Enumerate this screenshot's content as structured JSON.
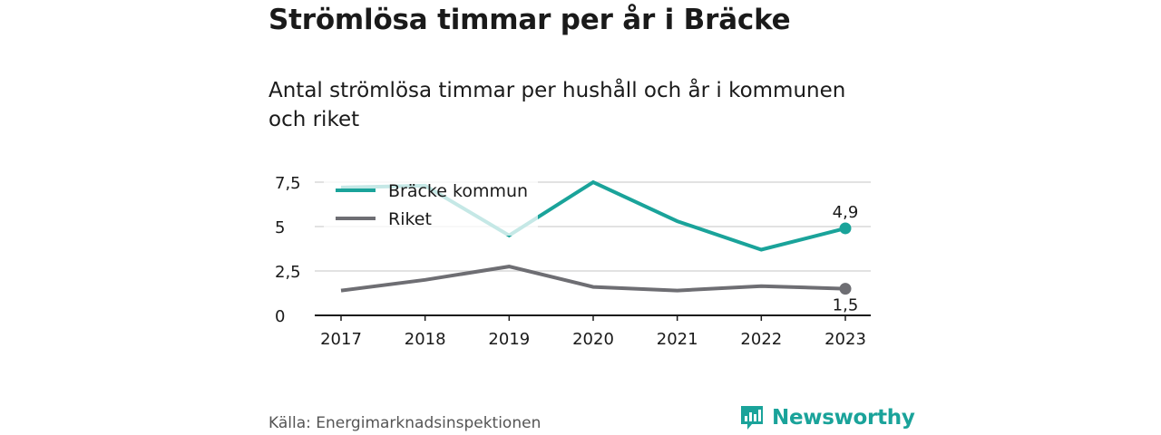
{
  "title": "Strömlösa timmar per år i Bräcke",
  "subtitle": "Antal strömlösa timmar per hushåll och år i kommunen och riket",
  "source": "Källa: Energimarknadsinspektionen",
  "brand": "Newsworthy",
  "colors": {
    "primary": "#1aa39a",
    "secondary": "#6e6e73",
    "grid": "#d9d9d9",
    "axis": "#1a1a1a",
    "brand": "#1aa39a"
  },
  "chart_data": {
    "type": "line",
    "x": [
      "2017",
      "2018",
      "2019",
      "2020",
      "2021",
      "2022",
      "2023"
    ],
    "yticks": [
      "0",
      "2,5",
      "5",
      "7,5"
    ],
    "ytick_values": [
      0,
      2.5,
      5,
      7.5
    ],
    "ylim": [
      0,
      7.5
    ],
    "grid": true,
    "legend_position": "top-left",
    "series": [
      {
        "name": "Bräcke kommun",
        "color": "#1aa39a",
        "values": [
          7.2,
          7.3,
          4.5,
          7.5,
          5.3,
          3.7,
          4.9
        ],
        "end_label": "4,9",
        "end_label_position": "above"
      },
      {
        "name": "Riket",
        "color": "#6e6e73",
        "values": [
          1.4,
          2.0,
          2.75,
          1.6,
          1.4,
          1.65,
          1.5
        ],
        "end_label": "1,5",
        "end_label_position": "below"
      }
    ]
  }
}
